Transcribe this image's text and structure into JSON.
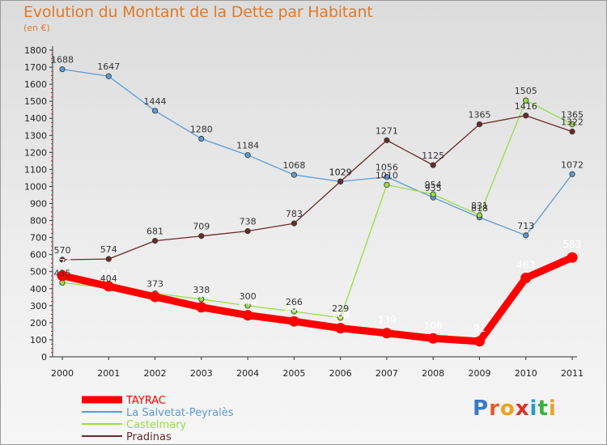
{
  "header": {
    "title": "Evolution du Montant de la Dette par Habitant",
    "subtitle": "(en €)"
  },
  "brand": {
    "letters": [
      "P",
      "r",
      "o",
      "x",
      "i",
      "t",
      "i"
    ],
    "colors": [
      "#3a78c8",
      "#e65a2a",
      "#f0a020",
      "#e0302a",
      "#2a9ad0",
      "#3ab040",
      "#f0a020"
    ]
  },
  "chart_data": {
    "type": "line",
    "x": [
      2000,
      2001,
      2002,
      2003,
      2004,
      2005,
      2006,
      2007,
      2008,
      2009,
      2010,
      2011
    ],
    "ylim": [
      0,
      1800
    ],
    "yticks": [
      0,
      100,
      200,
      300,
      400,
      500,
      600,
      700,
      800,
      900,
      1000,
      1100,
      1200,
      1300,
      1400,
      1500,
      1600,
      1700,
      1800
    ],
    "grid": false,
    "legend_position": "bottom-left",
    "series": [
      {
        "name": "TAYRAC",
        "color": "#ff0000",
        "values": [
          476,
          414,
          352,
          291,
          244,
          208,
          168,
          139,
          108,
          91,
          463,
          583
        ],
        "bold": true
      },
      {
        "name": "La Salvetat-Peyralès",
        "color": "#5b9bd5",
        "values": [
          1688,
          1647,
          1444,
          1280,
          1184,
          1068,
          1029,
          1056,
          935,
          818,
          713,
          1072
        ]
      },
      {
        "name": "Castelmary",
        "color": "#99dd44",
        "values": [
          435,
          404,
          373,
          338,
          300,
          266,
          229,
          1010,
          954,
          831,
          1505,
          1365
        ]
      },
      {
        "name": "Pradinas",
        "color": "#6b2a2a",
        "values": [
          570,
          574,
          681,
          709,
          738,
          783,
          1029,
          1271,
          1125,
          1365,
          1416,
          1322
        ]
      }
    ]
  }
}
